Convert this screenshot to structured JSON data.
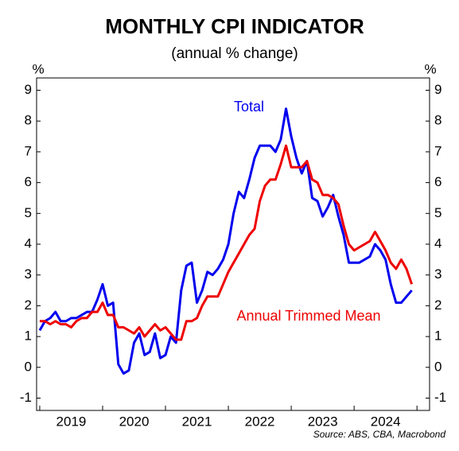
{
  "chart_data": {
    "type": "line",
    "title": "MONTHLY CPI INDICATOR",
    "subtitle": "(annual % change)",
    "y_unit": "%",
    "source": "Source: ABS, CBA, Macrobond",
    "x": [
      2019,
      2019.083,
      2019.167,
      2019.25,
      2019.333,
      2019.417,
      2019.5,
      2019.583,
      2019.667,
      2019.75,
      2019.833,
      2019.917,
      2020,
      2020.083,
      2020.167,
      2020.25,
      2020.333,
      2020.417,
      2020.5,
      2020.583,
      2020.667,
      2020.75,
      2020.833,
      2020.917,
      2021,
      2021.083,
      2021.167,
      2021.25,
      2021.333,
      2021.417,
      2021.5,
      2021.583,
      2021.667,
      2021.75,
      2021.833,
      2021.917,
      2022,
      2022.083,
      2022.167,
      2022.25,
      2022.333,
      2022.417,
      2022.5,
      2022.583,
      2022.667,
      2022.75,
      2022.833,
      2022.917,
      2023,
      2023.083,
      2023.167,
      2023.25,
      2023.333,
      2023.417,
      2023.5,
      2023.583,
      2023.667,
      2023.75,
      2023.833,
      2023.917,
      2024,
      2024.083,
      2024.167,
      2024.25,
      2024.333,
      2024.417,
      2024.5,
      2024.583,
      2024.667,
      2024.75,
      2024.833,
      2024.917
    ],
    "series": [
      {
        "name": "Total",
        "color": "#0000ee",
        "values": [
          1.2,
          1.5,
          1.6,
          1.8,
          1.5,
          1.5,
          1.6,
          1.6,
          1.7,
          1.8,
          1.8,
          2.2,
          2.7,
          2.0,
          2.1,
          0.1,
          -0.2,
          -0.1,
          0.8,
          1.1,
          0.4,
          0.5,
          1.1,
          0.3,
          0.4,
          1.0,
          0.8,
          2.5,
          3.3,
          3.4,
          2.1,
          2.5,
          3.1,
          3.0,
          3.2,
          3.5,
          4.0,
          5.0,
          5.7,
          5.5,
          6.1,
          6.8,
          7.2,
          7.2,
          7.2,
          7.0,
          7.4,
          8.4,
          7.5,
          6.8,
          6.3,
          6.7,
          5.5,
          5.4,
          4.9,
          5.2,
          5.6,
          4.9,
          4.3,
          3.4,
          3.4,
          3.4,
          3.5,
          3.6,
          4.0,
          3.8,
          3.5,
          2.7,
          2.1,
          2.1,
          2.3,
          2.5
        ]
      },
      {
        "name": "Annual Trimmed Mean",
        "color": "#ee0000",
        "values": [
          1.5,
          1.5,
          1.4,
          1.5,
          1.4,
          1.4,
          1.3,
          1.5,
          1.6,
          1.6,
          1.8,
          1.8,
          2.1,
          1.7,
          1.7,
          1.3,
          1.3,
          1.2,
          1.1,
          1.3,
          1.0,
          1.2,
          1.4,
          1.2,
          1.3,
          1.1,
          0.9,
          0.9,
          1.5,
          1.5,
          1.6,
          2.0,
          2.3,
          2.3,
          2.3,
          2.7,
          3.1,
          3.4,
          3.7,
          4.0,
          4.3,
          4.5,
          5.4,
          5.9,
          6.1,
          6.1,
          6.6,
          7.2,
          6.5,
          6.5,
          6.5,
          6.7,
          6.1,
          6.0,
          5.6,
          5.6,
          5.5,
          5.3,
          4.6,
          4.0,
          3.8,
          3.9,
          4.0,
          4.1,
          4.4,
          4.1,
          3.8,
          3.4,
          3.2,
          3.5,
          3.2,
          2.7
        ]
      }
    ],
    "xlim": [
      2018.95,
      2025.2
    ],
    "xticks": [
      {
        "value": 2019.5,
        "label": "2019"
      },
      {
        "value": 2020.5,
        "label": "2020"
      },
      {
        "value": 2021.5,
        "label": "2021"
      },
      {
        "value": 2022.5,
        "label": "2022"
      },
      {
        "value": 2023.5,
        "label": "2023"
      },
      {
        "value": 2024.5,
        "label": "2024"
      }
    ],
    "ylim": [
      -1.4,
      9.4
    ],
    "yticks": [
      -1,
      0,
      1,
      2,
      3,
      4,
      5,
      6,
      7,
      8,
      9
    ],
    "grid": false
  }
}
